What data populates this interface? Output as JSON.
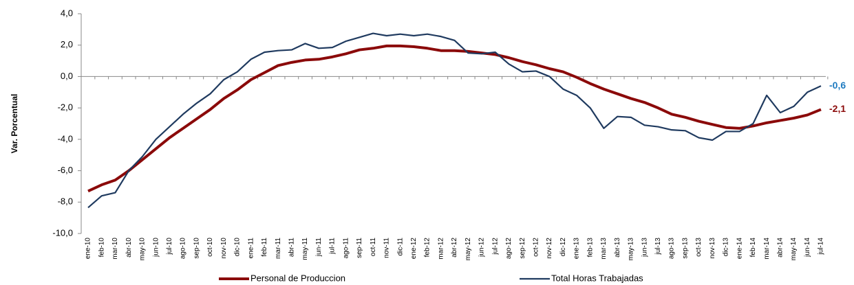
{
  "chart_data": {
    "type": "line",
    "y_label": "Var. Porcentual",
    "categories": [
      "ene-10",
      "feb-10",
      "mar-10",
      "abr-10",
      "may-10",
      "jun-10",
      "jul-10",
      "ago-10",
      "sep-10",
      "oct-10",
      "nov-10",
      "dic-10",
      "ene-11",
      "feb-11",
      "mar-11",
      "abr-11",
      "may-11",
      "jun-11",
      "jul-11",
      "ago-11",
      "sep-11",
      "oct-11",
      "nov-11",
      "dic-11",
      "ene-12",
      "feb-12",
      "mar-12",
      "abr-12",
      "may-12",
      "jun-12",
      "jul-12",
      "ago-12",
      "sep-12",
      "oct-12",
      "nov-12",
      "dic-12",
      "ene-13",
      "feb-13",
      "mar-13",
      "abr-13",
      "may-13",
      "jun-13",
      "jul-13",
      "ago-13",
      "sep-13",
      "oct-13",
      "nov-13",
      "dic-13",
      "ene-14",
      "feb-14",
      "mar-14",
      "abr-14",
      "may-14",
      "jun-14",
      "jul-14"
    ],
    "series": [
      {
        "name": "Personal de Produccion",
        "color": "#8b0a0a",
        "end_label": "-2,1",
        "values": [
          -7.3,
          -6.9,
          -6.6,
          -6.0,
          -5.3,
          -4.6,
          -3.9,
          -3.3,
          -2.7,
          -2.1,
          -1.4,
          -0.85,
          -0.2,
          0.25,
          0.7,
          0.9,
          1.05,
          1.1,
          1.25,
          1.45,
          1.7,
          1.8,
          1.95,
          1.95,
          1.9,
          1.8,
          1.65,
          1.65,
          1.6,
          1.5,
          1.4,
          1.2,
          0.95,
          0.75,
          0.5,
          0.3,
          -0.05,
          -0.45,
          -0.8,
          -1.1,
          -1.4,
          -1.65,
          -2.0,
          -2.4,
          -2.6,
          -2.85,
          -3.05,
          -3.25,
          -3.3,
          -3.15,
          -2.95,
          -2.8,
          -2.65,
          -2.45,
          -2.1
        ]
      },
      {
        "name": "Total Horas Trabajadas",
        "color": "#1f3a5f",
        "end_label": "-0,6",
        "end_label_color": "#1f7bc0",
        "values": [
          -8.35,
          -7.6,
          -7.4,
          -6.0,
          -5.1,
          -4.0,
          -3.2,
          -2.4,
          -1.7,
          -1.1,
          -0.2,
          0.3,
          1.1,
          1.55,
          1.65,
          1.7,
          2.1,
          1.8,
          1.85,
          2.25,
          2.5,
          2.75,
          2.6,
          2.7,
          2.6,
          2.7,
          2.55,
          2.3,
          1.5,
          1.45,
          1.55,
          0.8,
          0.3,
          0.35,
          0.0,
          -0.8,
          -1.2,
          -2.0,
          -3.3,
          -2.55,
          -2.6,
          -3.1,
          -3.2,
          -3.4,
          -3.45,
          -3.9,
          -4.05,
          -3.5,
          -3.5,
          -3.0,
          -1.2,
          -2.3,
          -1.9,
          -1.0,
          -0.6
        ]
      }
    ],
    "ylim": [
      -10,
      4
    ],
    "yticks": [
      {
        "value": -10,
        "label": "-10,0"
      },
      {
        "value": -8,
        "label": "-8,0"
      },
      {
        "value": -6,
        "label": "-6,0"
      },
      {
        "value": -4,
        "label": "-4,0"
      },
      {
        "value": -2,
        "label": "-2,0"
      },
      {
        "value": 0,
        "label": "0,0"
      },
      {
        "value": 2,
        "label": "2,0"
      },
      {
        "value": 4,
        "label": "4,0"
      }
    ],
    "grid": false
  }
}
